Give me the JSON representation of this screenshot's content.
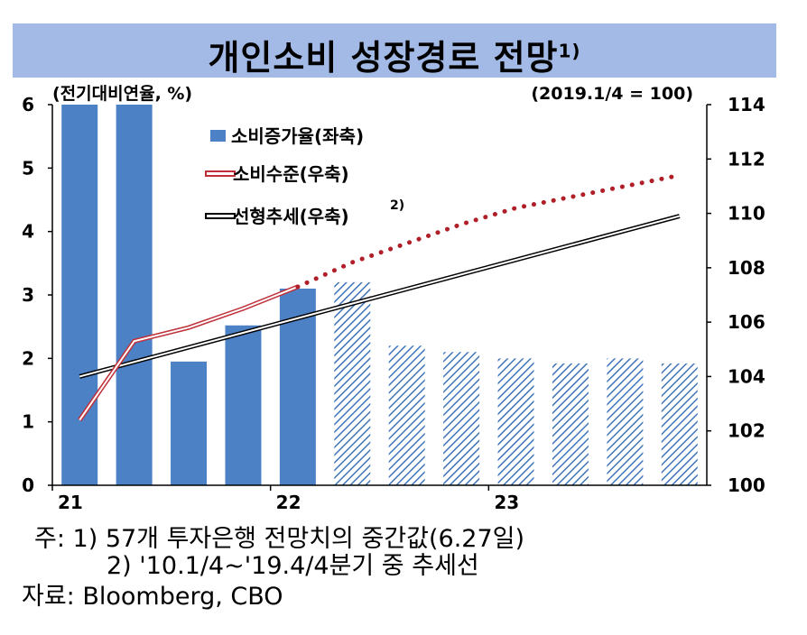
{
  "title": {
    "text": "개인소비 성장경로 전망",
    "sup": "1)"
  },
  "chart_data": {
    "type": "bar",
    "left_unit": "(전기대비연율, %)",
    "right_unit": "(2019.1/4 = 100)",
    "x_tick_labels": [
      {
        "label": "21",
        "index": 0
      },
      {
        "label": "22",
        "index": 4
      },
      {
        "label": "23",
        "index": 8
      }
    ],
    "y_left": {
      "ylim": [
        0,
        6
      ],
      "ticks": [
        "0",
        "1",
        "2",
        "3",
        "4",
        "5",
        "6"
      ]
    },
    "y_right": {
      "ylim": [
        100,
        114
      ],
      "ticks": [
        "100",
        "102",
        "104",
        "106",
        "108",
        "110",
        "112",
        "114"
      ]
    },
    "bars": {
      "name": "소비증가율(좌축)",
      "values": [
        6.0,
        6.0,
        1.95,
        2.52,
        3.1,
        3.2,
        2.2,
        2.1,
        2.0,
        1.92,
        2.0,
        1.92
      ],
      "forecast": [
        false,
        false,
        false,
        false,
        false,
        true,
        true,
        true,
        true,
        true,
        true,
        true
      ],
      "color": "#4d81c6"
    },
    "consumption_level": {
      "name": "소비수준(우축)",
      "axis": "right",
      "color": "#c0303a",
      "actual": [
        [
          0,
          102.4
        ],
        [
          1,
          105.3
        ],
        [
          2,
          105.8
        ],
        [
          3,
          106.5
        ],
        [
          4,
          107.3
        ]
      ],
      "forecast": [
        [
          4,
          107.3
        ],
        [
          5,
          108.2
        ],
        [
          6,
          108.9
        ],
        [
          7,
          109.6
        ],
        [
          8,
          110.2
        ],
        [
          9,
          110.6
        ],
        [
          10,
          111.0
        ],
        [
          11,
          111.4
        ]
      ]
    },
    "linear_trend": {
      "name": "선형추세(우축)",
      "sup": "2)",
      "axis": "right",
      "color": "#000000",
      "points": [
        [
          0,
          104.0
        ],
        [
          11,
          109.9
        ]
      ]
    }
  },
  "notes": {
    "line1": "주: 1) 57개 투자은행 전망치의 중간값(6.27일)",
    "line2": "2) '10.1/4~'19.4/4분기 중 추세선",
    "line3": "자료: Bloomberg, CBO"
  }
}
